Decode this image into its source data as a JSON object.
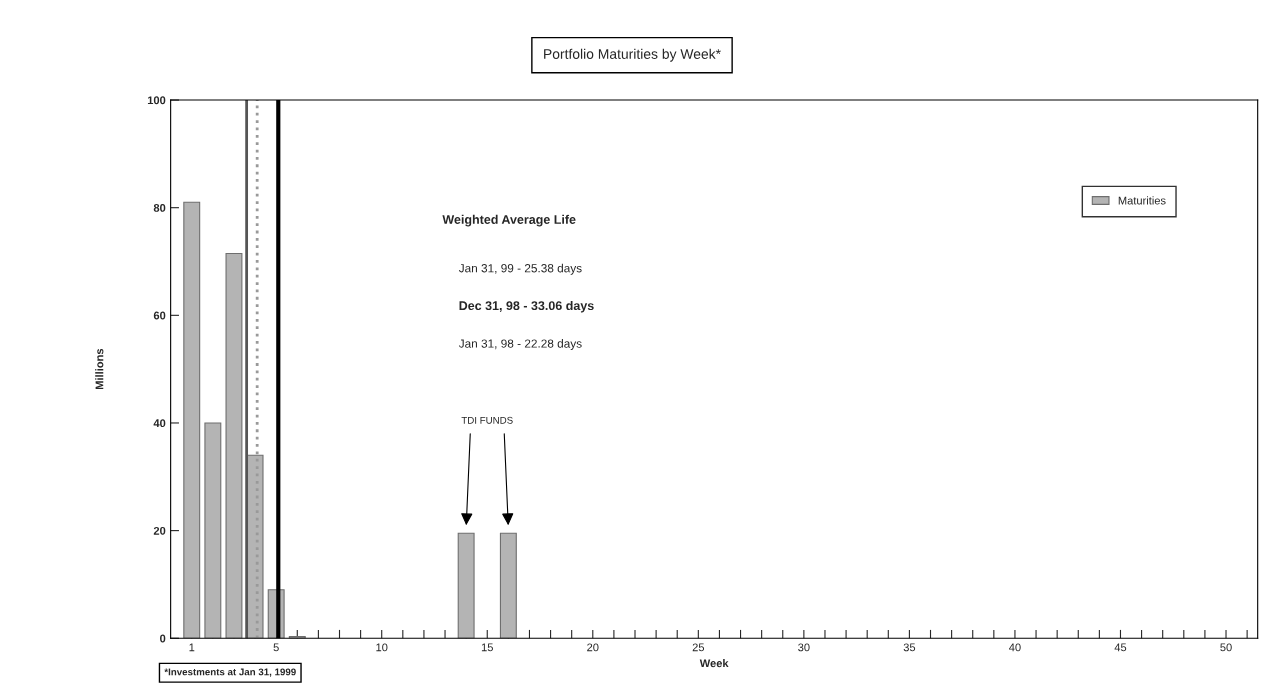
{
  "chart_data": {
    "type": "bar",
    "title": "Portfolio Maturities by Week*",
    "xlabel": "Week",
    "ylabel": "Millions",
    "x": [
      1,
      2,
      3,
      4,
      5,
      6,
      14,
      16
    ],
    "series": [
      {
        "name": "Maturities",
        "color": "#b4b4b4",
        "values": [
          81,
          40,
          71.5,
          34,
          9,
          0.3,
          19.5,
          19.5
        ]
      }
    ],
    "xlim": [
      0,
      51.5
    ],
    "xticks": [
      {
        "value": 1,
        "label": "1"
      },
      {
        "value": 2,
        "label": null
      },
      {
        "value": 3,
        "label": null
      },
      {
        "value": 4,
        "label": null
      },
      5,
      {
        "value": 6,
        "label": null
      },
      {
        "value": 7,
        "label": null
      },
      {
        "value": 8,
        "label": null
      },
      {
        "value": 9,
        "label": null
      },
      10,
      {
        "value": 11,
        "label": null
      },
      {
        "value": 12,
        "label": null
      },
      {
        "value": 13,
        "label": null
      },
      {
        "value": 14,
        "label": null
      },
      15,
      {
        "value": 16,
        "label": null
      },
      {
        "value": 17,
        "label": null
      },
      {
        "value": 18,
        "label": null
      },
      {
        "value": 19,
        "label": null
      },
      20,
      {
        "value": 21,
        "label": null
      },
      {
        "value": 22,
        "label": null
      },
      {
        "value": 23,
        "label": null
      },
      {
        "value": 24,
        "label": null
      },
      25,
      {
        "value": 26,
        "label": null
      },
      {
        "value": 27,
        "label": null
      },
      {
        "value": 28,
        "label": null
      },
      {
        "value": 29,
        "label": null
      },
      30,
      {
        "value": 31,
        "label": null
      },
      {
        "value": 32,
        "label": null
      },
      {
        "value": 33,
        "label": null
      },
      {
        "value": 34,
        "label": null
      },
      35,
      {
        "value": 36,
        "label": null
      },
      {
        "value": 37,
        "label": null
      },
      {
        "value": 38,
        "label": null
      },
      {
        "value": 39,
        "label": null
      },
      40,
      {
        "value": 41,
        "label": null
      },
      {
        "value": 42,
        "label": null
      },
      {
        "value": 43,
        "label": null
      },
      {
        "value": 44,
        "label": null
      },
      45,
      {
        "value": 46,
        "label": null
      },
      {
        "value": 47,
        "label": null
      },
      {
        "value": 48,
        "label": null
      },
      {
        "value": 49,
        "label": null
      },
      50,
      {
        "value": 51,
        "label": null
      }
    ],
    "ylim": [
      0,
      100
    ],
    "yticks": [
      0,
      20,
      40,
      60,
      80,
      100
    ],
    "ref_lines": [
      {
        "axis": "x",
        "value": 3.6,
        "color": "#555555",
        "line_style": "solid"
      },
      {
        "axis": "x",
        "value": 4.1,
        "color": "#999999",
        "line_style": "dotted"
      },
      {
        "axis": "x",
        "value": 5.1,
        "color": "#000000",
        "line_style": "solid"
      }
    ],
    "annotations": [
      "Weighted Average Life",
      "Jan 31, 99 - 25.38 days",
      "Dec 31, 98 - 33.06 days",
      "Jan 31, 98 - 22.28 days",
      "TDI FUNDS",
      "*Investments at Jan 31, 1999"
    ],
    "legend": "top right",
    "grid": false
  }
}
